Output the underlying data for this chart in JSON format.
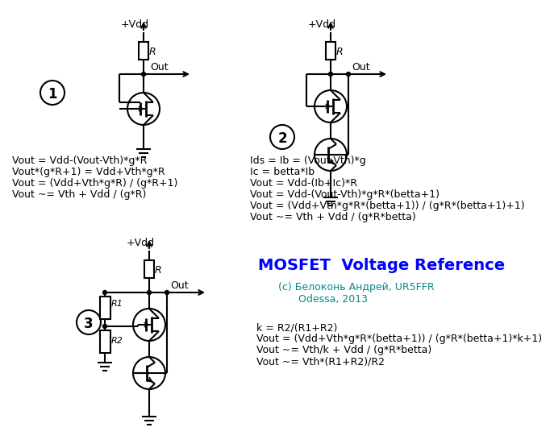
{
  "title": "MOSFET  Voltage Reference",
  "subtitle_line1": "(c) Белоконь Андрей, UR5FFR",
  "subtitle_line2": "Odessa, 2013",
  "title_color": "#0000FF",
  "subtitle_color": "#008B8B",
  "bg_color": "#FFFFFF",
  "eq1": [
    "Vout = Vdd-(Vout-Vth)*g*R",
    "Vout*(g*R+1) = Vdd+Vth*g*R",
    "Vout = (Vdd+Vth*g*R) / (g*R+1)",
    "Vout ~= Vth + Vdd / (g*R)"
  ],
  "eq2": [
    "Ids = Ib = (Vout-Vth)*g",
    "Ic = betta*Ib",
    "Vout = Vdd-(Ib+Ic)*R",
    "Vout = Vdd-(Vout-Vth)*g*R*(betta+1)",
    "Vout = (Vdd+Vth*g*R*(betta+1)) / (g*R*(betta+1)+1)",
    "Vout ~= Vth + Vdd / (g*R*betta)"
  ],
  "eq3": [
    "k = R2/(R1+R2)",
    "Vout = (Vdd+Vth*g*R*(betta+1)) / (g*R*(betta+1)*k+1)",
    "Vout ~= Vth/k + Vdd / (g*R*betta)",
    "Vout ~= Vth*(R1+R2)/R2"
  ]
}
